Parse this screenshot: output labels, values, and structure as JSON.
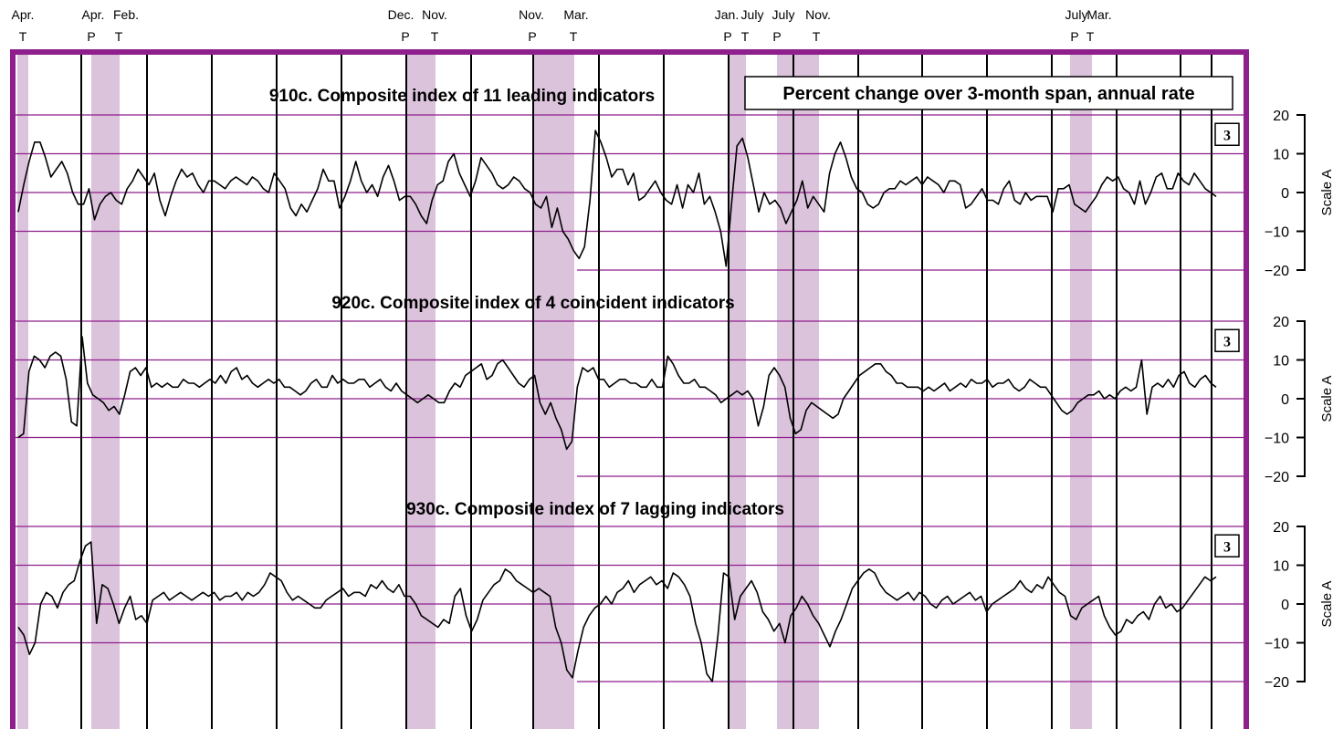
{
  "colors": {
    "frame": "#8e1f8c",
    "shade": "#dcc3dc",
    "grid": "#8e1f8c",
    "series": "#000000",
    "year_lines": "#000000"
  },
  "header_note": "Percent change  over 3-month span,  annual rate",
  "cycle_labels": [
    {
      "date": "Apr.",
      "code": "T"
    },
    {
      "date": "Apr.",
      "code": "P"
    },
    {
      "date": "Feb.",
      "code": "T"
    },
    {
      "date": "Dec.",
      "code": "P"
    },
    {
      "date": "Nov.",
      "code": "T"
    },
    {
      "date": "Nov.",
      "code": "P"
    },
    {
      "date": "Mar.",
      "code": "T"
    },
    {
      "date": "Jan.",
      "code": "P"
    },
    {
      "date": "July",
      "code": "T"
    },
    {
      "date": "July",
      "code": "P"
    },
    {
      "date": "Nov.",
      "code": "T"
    },
    {
      "date": "July",
      "code": "P"
    },
    {
      "date": "Mar.",
      "code": "T"
    }
  ],
  "chart_data": [
    {
      "type": "line",
      "title": "910c. Composite index of 11 leading indicators",
      "ylabel": "Scale A",
      "ylim": [
        -20,
        20
      ],
      "yticks": [
        "20",
        "10",
        "0",
        "−10",
        "−20"
      ],
      "badge": "3",
      "series": [
        {
          "values": [
            -5,
            2,
            8,
            13,
            13,
            9,
            4,
            6,
            8,
            5,
            0,
            -3,
            -3,
            1,
            -7,
            -3,
            -1,
            0,
            -2,
            -3,
            1,
            3,
            6,
            4,
            2,
            5,
            -2,
            -6,
            -1,
            3,
            6,
            4,
            5,
            2,
            0,
            3,
            3,
            2,
            1,
            3,
            4,
            3,
            2,
            4,
            3,
            1,
            0,
            5,
            3,
            1,
            -4,
            -6,
            -3,
            -5,
            -2,
            1,
            6,
            3,
            3,
            -4,
            -1,
            3,
            8,
            3,
            0,
            2,
            -1,
            4,
            7,
            3,
            -2,
            -1,
            -1,
            -3,
            -6,
            -8,
            -2,
            2,
            3,
            8,
            10,
            5,
            2,
            -1,
            3,
            9,
            7,
            5,
            2,
            1,
            2,
            4,
            3,
            1,
            0,
            -3,
            -4,
            -1,
            -9,
            -4,
            -10,
            -12,
            -15,
            -17,
            -14,
            -2,
            16,
            13,
            9,
            4,
            6,
            6,
            2,
            5,
            -2,
            -1,
            1,
            3,
            0,
            -2,
            -3,
            2,
            -4,
            2,
            0,
            5,
            -3,
            -1,
            -5,
            -10,
            -19,
            -3,
            12,
            14,
            9,
            2,
            -5,
            0,
            -3,
            -2,
            -4,
            -8,
            -5,
            -2,
            3,
            -4,
            -1,
            -3,
            -5,
            5,
            10,
            13,
            9,
            4,
            1,
            0,
            -3,
            -4,
            -3,
            0,
            1,
            1,
            3,
            2,
            3,
            4,
            2,
            4,
            3,
            2,
            0,
            3,
            3,
            2,
            -4,
            -3,
            -1,
            1,
            -2,
            -2,
            -3,
            1,
            3,
            -2,
            -3,
            0,
            -2,
            -1,
            -1,
            -1,
            -5,
            1,
            1,
            2,
            -3,
            -4,
            -5,
            -3,
            -1,
            2,
            4,
            3,
            4,
            1,
            0,
            -3,
            3,
            -3,
            0,
            4,
            5,
            1,
            1,
            5,
            3,
            2,
            5,
            3,
            1,
            0,
            -1
          ]
        }
      ]
    },
    {
      "type": "line",
      "title": "920c. Composite index of 4 coincident indicators",
      "ylabel": "Scale A",
      "ylim": [
        -20,
        20
      ],
      "yticks": [
        "20",
        "10",
        "0",
        "−10",
        "−20"
      ],
      "badge": "3",
      "series": [
        {
          "values": [
            -10,
            -9,
            7,
            11,
            10,
            8,
            11,
            12,
            11,
            5,
            -6,
            -7,
            16,
            4,
            1,
            0,
            -1,
            -3,
            -2,
            -4,
            1,
            7,
            8,
            6,
            8,
            3,
            4,
            3,
            4,
            3,
            3,
            5,
            4,
            4,
            3,
            4,
            5,
            4,
            6,
            4,
            7,
            8,
            5,
            6,
            4,
            3,
            4,
            5,
            4,
            5,
            3,
            3,
            2,
            1,
            2,
            4,
            5,
            3,
            3,
            6,
            4,
            5,
            4,
            4,
            5,
            5,
            3,
            4,
            5,
            3,
            2,
            4,
            2,
            1,
            0,
            -1,
            0,
            1,
            0,
            -1,
            -1,
            2,
            4,
            3,
            6,
            7,
            8,
            9,
            5,
            6,
            9,
            10,
            8,
            6,
            4,
            3,
            5,
            6,
            -1,
            -4,
            -1,
            -5,
            -8,
            -13,
            -11,
            3,
            8,
            7,
            8,
            5,
            5,
            3,
            4,
            5,
            5,
            4,
            4,
            3,
            3,
            5,
            3,
            3,
            11,
            9,
            6,
            4,
            4,
            5,
            3,
            3,
            2,
            1,
            -1,
            0,
            1,
            2,
            1,
            2,
            0,
            -7,
            -2,
            6,
            8,
            6,
            3,
            -5,
            -9,
            -8,
            -3,
            -1,
            -2,
            -3,
            -4,
            -5,
            -4,
            0,
            2,
            4,
            6,
            7,
            8,
            9,
            9,
            7,
            6,
            4,
            4,
            3,
            3,
            3,
            2,
            3,
            2,
            3,
            4,
            2,
            3,
            4,
            3,
            5,
            4,
            4,
            5,
            3,
            4,
            4,
            5,
            3,
            2,
            3,
            5,
            4,
            3,
            3,
            1,
            -1,
            -3,
            -4,
            -3,
            -1,
            0,
            1,
            1,
            2,
            0,
            1,
            0,
            2,
            3,
            2,
            3,
            10,
            -4,
            3,
            4,
            3,
            5,
            3,
            6,
            7,
            4,
            3,
            5,
            6,
            4,
            3
          ]
        }
      ]
    },
    {
      "type": "line",
      "title": "930c. Composite index of 7 lagging indicators",
      "ylabel": "Scale A",
      "ylim": [
        -20,
        20
      ],
      "yticks": [
        "20",
        "10",
        "0",
        "−10",
        "−20"
      ],
      "badge": "3",
      "series": [
        {
          "values": [
            -6,
            -8,
            -13,
            -10,
            0,
            3,
            2,
            -1,
            3,
            5,
            6,
            11,
            15,
            16,
            -5,
            5,
            4,
            0,
            -5,
            -1,
            2,
            -4,
            -3,
            -5,
            1,
            2,
            3,
            1,
            2,
            3,
            2,
            1,
            2,
            3,
            2,
            3,
            1,
            2,
            2,
            3,
            1,
            3,
            2,
            3,
            5,
            8,
            7,
            6,
            3,
            1,
            2,
            1,
            0,
            -1,
            -1,
            1,
            2,
            3,
            4,
            2,
            3,
            3,
            2,
            5,
            4,
            6,
            4,
            3,
            5,
            2,
            2,
            0,
            -3,
            -4,
            -5,
            -6,
            -4,
            -5,
            2,
            4,
            -3,
            -7,
            -4,
            1,
            3,
            5,
            6,
            9,
            8,
            6,
            5,
            4,
            3,
            4,
            3,
            2,
            -6,
            -10,
            -17,
            -19,
            -12,
            -6,
            -3,
            -1,
            0,
            2,
            0,
            3,
            4,
            6,
            3,
            5,
            6,
            7,
            5,
            6,
            4,
            8,
            7,
            5,
            2,
            -5,
            -10,
            -18,
            -20,
            -8,
            8,
            7,
            -4,
            2,
            4,
            6,
            3,
            -2,
            -4,
            -7,
            -5,
            -10,
            -3,
            -1,
            2,
            0,
            -3,
            -5,
            -8,
            -11,
            -7,
            -4,
            0,
            4,
            6,
            8,
            9,
            8,
            5,
            3,
            2,
            1,
            2,
            3,
            1,
            3,
            2,
            0,
            -1,
            1,
            2,
            0,
            1,
            2,
            3,
            1,
            2,
            -2,
            0,
            1,
            2,
            3,
            4,
            6,
            4,
            3,
            5,
            4,
            7,
            5,
            3,
            2,
            -3,
            -4,
            -1,
            0,
            1,
            2,
            -3,
            -6,
            -8,
            -7,
            -4,
            -5,
            -3,
            -2,
            -4,
            0,
            2,
            -1,
            0,
            -2,
            -1,
            1,
            3,
            5,
            7,
            6,
            7
          ]
        }
      ]
    }
  ]
}
